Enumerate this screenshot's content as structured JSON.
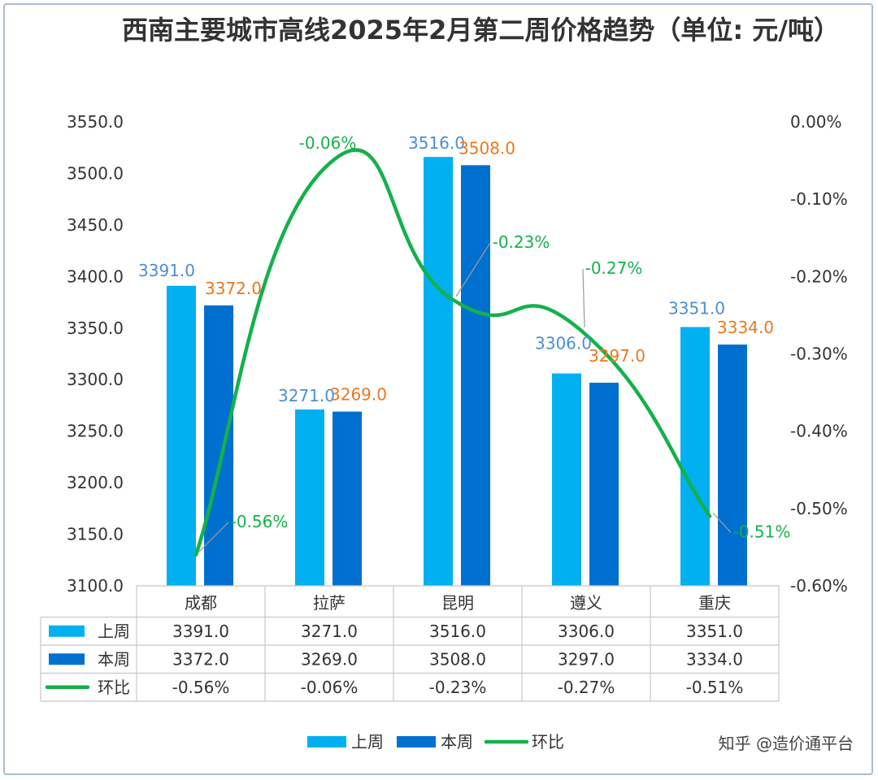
{
  "title": "西南主要城市高线2025年2月第二周价格趋势（单位: 元/吨）",
  "watermark": "知乎 @造价通平台",
  "colors": {
    "last_week": "#00b0f0",
    "this_week": "#0070d0",
    "ratio": "#14b14b",
    "label_last": "#4a8fd4",
    "label_this": "#e8791e"
  },
  "chart_data": {
    "type": "bar",
    "categories": [
      "成都",
      "拉萨",
      "昆明",
      "遵义",
      "重庆"
    ],
    "series": [
      {
        "name": "上周",
        "type": "bar",
        "axis": "left",
        "values": [
          3391.0,
          3271.0,
          3516.0,
          3306.0,
          3351.0
        ],
        "labels": [
          "3391.0",
          "3271.0",
          "3516.0",
          "3306.0",
          "3351.0"
        ]
      },
      {
        "name": "本周",
        "type": "bar",
        "axis": "left",
        "values": [
          3372.0,
          3269.0,
          3508.0,
          3297.0,
          3334.0
        ],
        "labels": [
          "3372.0",
          "3269.0",
          "3508.0",
          "3297.0",
          "3334.0"
        ]
      },
      {
        "name": "环比",
        "type": "line",
        "axis": "right",
        "values": [
          -0.56,
          -0.06,
          -0.23,
          -0.27,
          -0.51
        ],
        "labels": [
          "-0.56%",
          "-0.06%",
          "-0.23%",
          "-0.27%",
          "-0.51%"
        ]
      }
    ],
    "y_left": {
      "min": 3100,
      "max": 3550,
      "step": 50,
      "ticks": [
        "3550.0",
        "3500.0",
        "3450.0",
        "3400.0",
        "3350.0",
        "3300.0",
        "3250.0",
        "3200.0",
        "3150.0",
        "3100.0"
      ]
    },
    "y_right": {
      "min": -0.6,
      "max": 0.0,
      "step": 0.1,
      "ticks": [
        "0.00%",
        "-0.10%",
        "-0.20%",
        "-0.30%",
        "-0.40%",
        "-0.50%",
        "-0.60%"
      ]
    },
    "grid": false,
    "legend_position": "bottom",
    "data_table": {
      "rows": [
        {
          "name": "上周",
          "cells": [
            "3391.0",
            "3271.0",
            "3516.0",
            "3306.0",
            "3351.0"
          ]
        },
        {
          "name": "本周",
          "cells": [
            "3372.0",
            "3269.0",
            "3508.0",
            "3297.0",
            "3334.0"
          ]
        },
        {
          "name": "环比",
          "cells": [
            "-0.56%",
            "-0.06%",
            "-0.23%",
            "-0.27%",
            "-0.51%"
          ]
        }
      ]
    }
  }
}
